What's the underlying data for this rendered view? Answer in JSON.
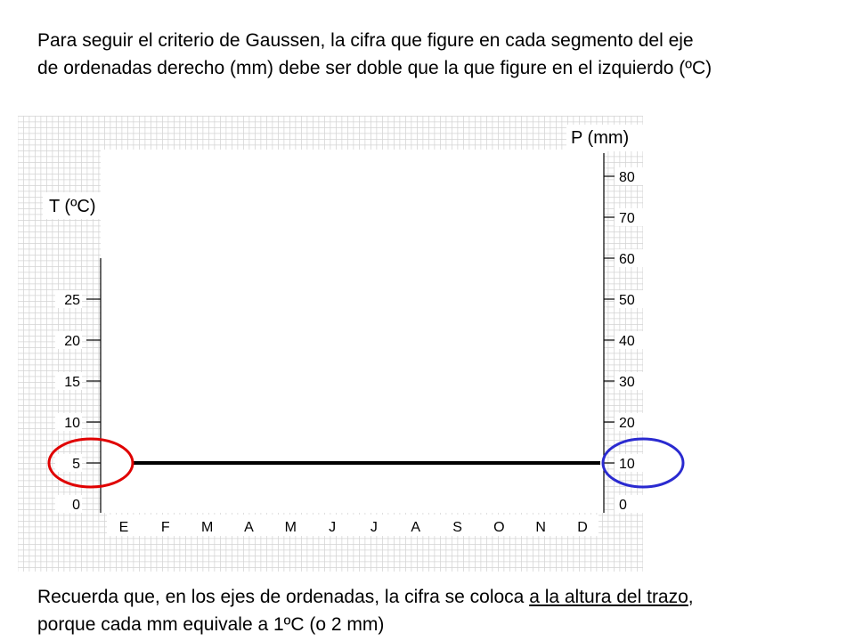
{
  "instructions": {
    "top_line1": "Para seguir el criterio de Gaussen, la cifra que figure en cada segmento del eje",
    "top_line2": "de ordenadas derecho (mm) debe ser doble que la que figure en el izquierdo (ºC)",
    "bottom_line1_prefix": "Recuerda que, en los ejes de ordenadas, la cifra se coloca ",
    "bottom_line1_underlined": "a la altura del trazo",
    "bottom_line1_suffix": ",",
    "bottom_line2": "porque cada mm equivale a 1ºC (o 2 mm)"
  },
  "chart_data": {
    "type": "line",
    "categories": [
      "E",
      "F",
      "M",
      "A",
      "M",
      "J",
      "J",
      "A",
      "S",
      "O",
      "N",
      "D"
    ],
    "left_axis": {
      "label": "T (ºC)",
      "ticks": [
        0,
        5,
        10,
        15,
        20,
        25
      ]
    },
    "right_axis": {
      "label": "P (mm)",
      "ticks": [
        0,
        10,
        20,
        30,
        40,
        50,
        60,
        70,
        80
      ]
    },
    "reference_line": {
      "left_value": 5,
      "right_value": 10,
      "color": "#000000"
    },
    "highlights": [
      {
        "axis": "left",
        "value": 5,
        "color": "#e00000"
      },
      {
        "axis": "right",
        "value": 10,
        "color": "#2a2ad0"
      }
    ],
    "grid": true,
    "grid_background": "#d4d4d4"
  }
}
